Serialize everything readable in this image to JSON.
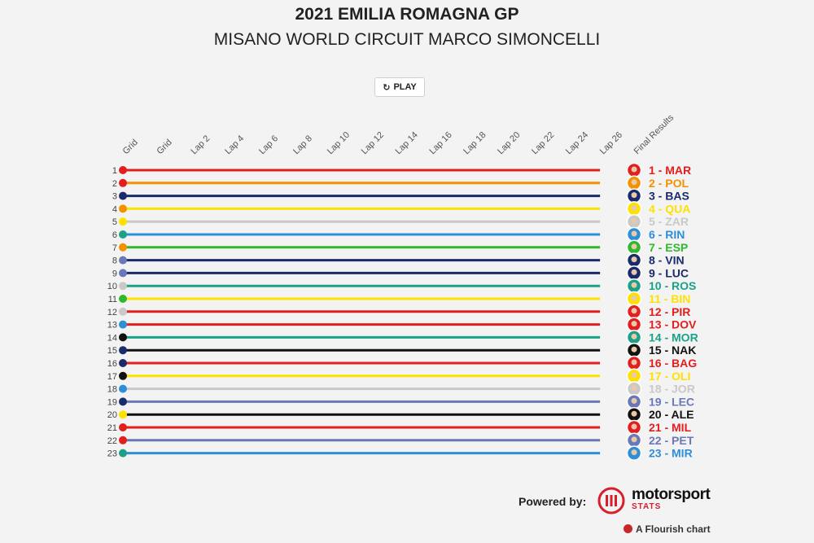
{
  "title": "2021 EMILIA ROMAGNA GP",
  "subtitle": "MISANO WORLD CIRCUIT MARCO SIMONCELLI",
  "play_label": "PLAY",
  "powered_label": "Powered by:",
  "brand_word": "motorsport",
  "brand_sub": "STATS",
  "flourish_label": "A Flourish chart",
  "colors": {
    "red": "#e21e1e",
    "orange": "#f39200",
    "navy": "#1b2a6b",
    "yellow": "#ffe100",
    "teal": "#1aa187",
    "green": "#2eb82e",
    "slate": "#6b78b8",
    "lightgray": "#c9c9c9",
    "skyblue": "#2c8fd8",
    "black": "#111111"
  },
  "chart_data": {
    "type": "line",
    "columns": [
      "Grid",
      "Grid",
      "Lap 2",
      "Lap 4",
      "Lap 6",
      "Lap 8",
      "Lap 10",
      "Lap 12",
      "Lap 14",
      "Lap 16",
      "Lap 18",
      "Lap 20",
      "Lap 22",
      "Lap 24",
      "Lap 26",
      "Final Results"
    ],
    "ylim": [
      1,
      23
    ],
    "y_inverted": true,
    "y_ticks": [
      "1",
      "2",
      "3",
      "4",
      "5",
      "6",
      "7",
      "8",
      "9",
      "10",
      "11",
      "12",
      "13",
      "14",
      "15",
      "16",
      "17",
      "18",
      "19",
      "20",
      "21",
      "22",
      "23"
    ],
    "final_labels": [
      "1 - MAR",
      "2 - POL",
      "3 - BAS",
      "4 - QUA",
      "5 - ZAR",
      "6 - RIN",
      "7 - ESP",
      "8 - VIN",
      "9 - LUC",
      "10 - ROS",
      "11 - BIN",
      "12 - PIR",
      "13 - DOV",
      "14 - MOR",
      "15 - NAK",
      "16 - BAG",
      "17 - OLI",
      "18 - JOR",
      "19 - LEC",
      "20 - ALE",
      "21 - MIL",
      "22 - PET",
      "23 - MIR"
    ],
    "series": [
      {
        "color": "red",
        "values": [
          1,
          1,
          1,
          1,
          1,
          1,
          1,
          1,
          1,
          1,
          1,
          1,
          1,
          1,
          1
        ]
      },
      {
        "color": "orange",
        "values": [
          2,
          2,
          2,
          2,
          2,
          2,
          2,
          2,
          2,
          2,
          2,
          2,
          2,
          2,
          2
        ]
      },
      {
        "color": "navy",
        "values": [
          3,
          3,
          3,
          3,
          3,
          3,
          3,
          3,
          3,
          3,
          3,
          3,
          3,
          3,
          3
        ]
      },
      {
        "color": "yellow",
        "values": [
          4,
          4,
          4,
          4,
          4,
          4,
          4,
          4,
          4,
          4,
          4,
          4,
          4,
          4,
          4
        ]
      },
      {
        "color": "lightgray",
        "values": [
          5,
          5,
          5,
          5,
          5,
          5,
          5,
          5,
          5,
          5,
          5,
          5,
          5,
          5,
          5
        ]
      },
      {
        "color": "skyblue",
        "values": [
          6,
          6,
          6,
          6,
          6,
          6,
          6,
          6,
          6,
          6,
          6,
          6,
          6,
          6,
          6
        ]
      },
      {
        "color": "green",
        "values": [
          7,
          7,
          7,
          7,
          7,
          7,
          7,
          7,
          7,
          7,
          7,
          7,
          7,
          7,
          7
        ]
      },
      {
        "color": "navy",
        "values": [
          8,
          8,
          8,
          8,
          8,
          8,
          8,
          8,
          8,
          8,
          8,
          8,
          8,
          8,
          8
        ]
      },
      {
        "color": "navy",
        "values": [
          9,
          9,
          9,
          9,
          9,
          9,
          9,
          9,
          9,
          9,
          9,
          9,
          9,
          9,
          9
        ]
      },
      {
        "color": "teal",
        "values": [
          10,
          10,
          10,
          10,
          10,
          10,
          10,
          10,
          10,
          10,
          10,
          10,
          10,
          10,
          10
        ]
      },
      {
        "color": "yellow",
        "values": [
          11,
          11,
          11,
          11,
          11,
          11,
          11,
          11,
          11,
          11,
          11,
          11,
          11,
          11,
          11
        ]
      },
      {
        "color": "red",
        "values": [
          12,
          12,
          12,
          12,
          12,
          12,
          12,
          12,
          12,
          12,
          12,
          12,
          12,
          12,
          12
        ]
      },
      {
        "color": "red",
        "values": [
          13,
          13,
          13,
          13,
          13,
          13,
          13,
          13,
          13,
          13,
          13,
          13,
          13,
          13,
          13
        ]
      },
      {
        "color": "teal",
        "values": [
          14,
          14,
          14,
          14,
          14,
          14,
          14,
          14,
          14,
          14,
          14,
          14,
          14,
          14,
          14
        ]
      },
      {
        "color": "black",
        "values": [
          15,
          15,
          15,
          15,
          15,
          15,
          15,
          15,
          15,
          15,
          15,
          15,
          15,
          15,
          15
        ]
      },
      {
        "color": "red",
        "values": [
          16,
          16,
          16,
          16,
          16,
          16,
          16,
          16,
          16,
          16,
          16,
          16,
          16,
          16,
          16
        ]
      },
      {
        "color": "yellow",
        "values": [
          17,
          17,
          17,
          17,
          17,
          17,
          17,
          17,
          17,
          17,
          17,
          17,
          17,
          17,
          17
        ]
      },
      {
        "color": "lightgray",
        "values": [
          18,
          18,
          18,
          18,
          18,
          18,
          18,
          18,
          18,
          18,
          18,
          18,
          18,
          18,
          18
        ]
      },
      {
        "color": "slate",
        "values": [
          19,
          19,
          19,
          19,
          19,
          19,
          19,
          19,
          19,
          19,
          19,
          19,
          19,
          19,
          19
        ]
      },
      {
        "color": "black",
        "values": [
          20,
          20,
          20,
          20,
          20,
          20,
          20,
          20,
          20,
          20,
          20,
          20,
          20,
          20,
          20
        ]
      },
      {
        "color": "red",
        "values": [
          21,
          21,
          21,
          21,
          21,
          21,
          21,
          21,
          21,
          21,
          21,
          21,
          21,
          21,
          21
        ]
      },
      {
        "color": "slate",
        "values": [
          22,
          22,
          22,
          22,
          22,
          22,
          22,
          22,
          22,
          22,
          22,
          22,
          22,
          22,
          22
        ]
      },
      {
        "color": "skyblue",
        "values": [
          23,
          23,
          23,
          23,
          23,
          23,
          23,
          23,
          23,
          23,
          23,
          23,
          23,
          23,
          23
        ]
      }
    ],
    "grid_dots": [
      {
        "pos": 1,
        "color": "red"
      },
      {
        "pos": 2,
        "color": "red"
      },
      {
        "pos": 3,
        "color": "navy"
      },
      {
        "pos": 4,
        "color": "orange"
      },
      {
        "pos": 5,
        "color": "yellow"
      },
      {
        "pos": 6,
        "color": "teal"
      },
      {
        "pos": 7,
        "color": "orange"
      },
      {
        "pos": 8,
        "color": "slate"
      },
      {
        "pos": 9,
        "color": "slate"
      },
      {
        "pos": 10,
        "color": "lightgray"
      },
      {
        "pos": 11,
        "color": "green"
      },
      {
        "pos": 12,
        "color": "lightgray"
      },
      {
        "pos": 13,
        "color": "skyblue"
      },
      {
        "pos": 14,
        "color": "black"
      },
      {
        "pos": 15,
        "color": "navy"
      },
      {
        "pos": 16,
        "color": "navy"
      },
      {
        "pos": 17,
        "color": "black"
      },
      {
        "pos": 18,
        "color": "skyblue"
      },
      {
        "pos": 19,
        "color": "navy"
      },
      {
        "pos": 20,
        "color": "yellow"
      },
      {
        "pos": 21,
        "color": "red"
      },
      {
        "pos": 22,
        "color": "red"
      },
      {
        "pos": 23,
        "color": "teal"
      }
    ],
    "legend": "none",
    "grid": false
  }
}
